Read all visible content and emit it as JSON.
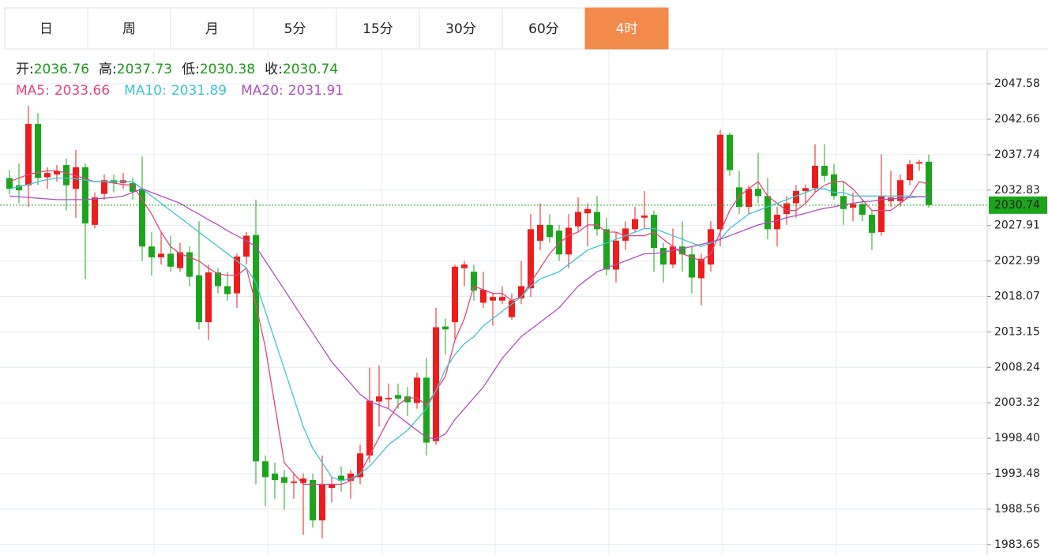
{
  "tabs": {
    "items": [
      "日",
      "周",
      "月",
      "5分",
      "15分",
      "30分",
      "60分",
      "4时"
    ],
    "active": 7,
    "active_color": "#f28a4b"
  },
  "chart_data": {
    "type": "candlestick",
    "labels": {
      "open": "开:",
      "high": "高:",
      "low": "低:",
      "close": "收:"
    },
    "up_color": "#ee1c1c",
    "down_color": "#1ca51c",
    "grid": true,
    "ylim": [
      1982.2,
      2052.3
    ],
    "yticks": [
      2047.58,
      2042.66,
      2037.74,
      2032.83,
      2027.91,
      2022.99,
      2018.07,
      2013.15,
      2008.24,
      2003.32,
      {
        "value": 1998.4,
        "label": "1998.40"
      },
      1993.48,
      1988.56,
      1983.65
    ],
    "open": [
      2034.5,
      2033.5,
      2033.5,
      2042.0,
      2034.6,
      2035.0,
      2036.3,
      2033.0,
      2036.0,
      2028.0,
      2032.3,
      2034.2,
      2033.8,
      2033.8,
      2033.0,
      2025.0,
      2023.5,
      2024.0,
      2022.0,
      2024.2,
      2021.0,
      2014.5,
      2021.4,
      2019.5,
      2018.5,
      2023.6,
      2026.6,
      1995.2,
      1993.5,
      1993.0,
      1992.2,
      1992.2,
      1992.6,
      1987.0,
      1991.5,
      1993.2,
      1992.5,
      1993.0,
      1996.0,
      2003.5,
      2003.8,
      2004.4,
      2004.2,
      2003.3,
      2006.8,
      1998.0,
      2013.9,
      2014.5,
      2022.0,
      2021.5,
      2017.2,
      2017.5,
      2017.5,
      2015.2,
      2017.8,
      2019.2,
      2025.8,
      2028.0,
      2027.2,
      2023.9,
      2027.8,
      2029.6,
      2029.8,
      2027.4,
      2021.8,
      2025.8,
      2027.4,
      2029.0,
      2029.4,
      2024.8,
      2022.5,
      2025.0,
      2023.9,
      2020.6,
      2022.5,
      2027.4,
      2040.5,
      2033.2,
      2030.5,
      2033.0,
      2032.0,
      2027.4,
      2029.5,
      2031.0,
      2032.7,
      2033.1,
      2036.2,
      2035.0,
      2032.0,
      2030.4,
      2030.9,
      2029.4,
      2027.0,
      2031.3,
      2031.3,
      2034.2,
      2036.5,
      2036.76
    ],
    "high": [
      2035.6,
      2036.5,
      2044.5,
      2043.5,
      2036.0,
      2036.3,
      2037.2,
      2038.4,
      2036.5,
      2032.5,
      2035.0,
      2035.0,
      2035.2,
      2034.5,
      2037.5,
      2027.0,
      2027.0,
      2026.5,
      2025.5,
      2025.0,
      2028.5,
      2022.5,
      2022.0,
      2021.5,
      2024.0,
      2027.0,
      2031.5,
      1996.0,
      1995.0,
      1994.0,
      1993.5,
      1993.5,
      1993.5,
      1996.0,
      1993.0,
      1994.5,
      1994.0,
      1997.5,
      2008.2,
      2008.5,
      2006.0,
      2006.0,
      2005.5,
      2007.5,
      2009.5,
      2016.5,
      2015.0,
      2022.5,
      2023.0,
      2022.5,
      2021.5,
      2018.5,
      2019.5,
      2018.5,
      2023.0,
      2029.5,
      2031.0,
      2029.5,
      2028.0,
      2029.5,
      2031.8,
      2031.0,
      2032.0,
      2029.0,
      2027.0,
      2028.5,
      2030.5,
      2032.7,
      2030.0,
      2025.5,
      2027.5,
      2028.5,
      2025.0,
      2024.0,
      2028.5,
      2041.2,
      2040.8,
      2035.5,
      2033.5,
      2038.0,
      2034.5,
      2030.5,
      2032.0,
      2033.5,
      2033.6,
      2039.2,
      2039.2,
      2036.5,
      2034.0,
      2032.5,
      2031.5,
      2030.0,
      2037.8,
      2035.5,
      2035.0,
      2037.0,
      2037.0,
      2037.73
    ],
    "low": [
      2032.3,
      2031.0,
      2030.5,
      2033.5,
      2033.0,
      2034.0,
      2030.0,
      2029.0,
      2020.5,
      2027.5,
      2031.5,
      2032.5,
      2033.0,
      2031.5,
      2023.0,
      2021.0,
      2022.5,
      2021.5,
      2021.5,
      2019.5,
      2013.5,
      2012.0,
      2018.5,
      2017.5,
      2016.5,
      2022.5,
      1992.0,
      1989.0,
      1990.0,
      1988.5,
      1990.0,
      1985.0,
      1986.0,
      1984.5,
      1989.5,
      1991.0,
      1990.0,
      1992.0,
      1995.0,
      2000.0,
      2002.5,
      2002.5,
      2001.5,
      2002.5,
      1996.0,
      1997.5,
      2010.0,
      2012.0,
      2019.5,
      2017.5,
      2016.5,
      2014.0,
      2017.0,
      2014.8,
      2017.0,
      2018.0,
      2024.5,
      2025.5,
      2023.0,
      2022.0,
      2027.0,
      2025.0,
      2026.5,
      2021.0,
      2020.0,
      2024.5,
      2027.0,
      2027.5,
      2021.5,
      2020.0,
      2022.0,
      2021.5,
      2018.5,
      2016.8,
      2021.5,
      2025.0,
      2034.8,
      2029.5,
      2029.5,
      2031.0,
      2026.0,
      2025.0,
      2028.0,
      2029.0,
      2031.0,
      2032.5,
      2034.0,
      2031.5,
      2028.0,
      2028.5,
      2028.5,
      2024.5,
      2026.5,
      2030.5,
      2030.5,
      2033.5,
      2035.5,
      2030.38
    ],
    "close": [
      2033.0,
      2032.8,
      2042.0,
      2034.5,
      2035.2,
      2035.5,
      2033.5,
      2036.0,
      2028.2,
      2031.8,
      2034.2,
      2033.8,
      2034.2,
      2032.6,
      2025.0,
      2023.5,
      2024.0,
      2022.2,
      2024.2,
      2020.8,
      2014.5,
      2021.4,
      2019.5,
      2018.4,
      2023.6,
      2026.5,
      1995.2,
      1993.0,
      1992.6,
      1992.2,
      1992.4,
      1992.8,
      1987.0,
      1992.0,
      1992.0,
      1992.5,
      1993.5,
      1996.3,
      2003.6,
      2004.2,
      2004.0,
      2003.9,
      2003.4,
      2006.8,
      1997.8,
      2013.8,
      2013.5,
      2022.2,
      2022.5,
      2018.9,
      2019.0,
      2018.0,
      2018.0,
      2017.5,
      2019.5,
      2027.4,
      2028.0,
      2026.3,
      2023.9,
      2027.6,
      2029.8,
      2030.2,
      2027.4,
      2021.8,
      2025.8,
      2027.5,
      2028.8,
      2029.3,
      2024.8,
      2022.5,
      2025.0,
      2023.9,
      2020.7,
      2023.3,
      2027.4,
      2040.5,
      2035.6,
      2030.5,
      2033.0,
      2032.0,
      2027.4,
      2029.4,
      2031.0,
      2032.7,
      2033.1,
      2036.2,
      2034.8,
      2032.0,
      2030.2,
      2030.9,
      2029.4,
      2026.9,
      2032.0,
      2031.8,
      2034.2,
      2036.4,
      2036.7,
      2030.74
    ],
    "series": [
      {
        "name": "MA5:",
        "color": "#e8457a",
        "values": [
          2034.0,
          2034.5,
          2035.0,
          2035.3,
          2035.5,
          2035.5,
          2035.2,
          2034.8,
          2034.4,
          2034.0,
          2034.0,
          2033.8,
          2033.6,
          2033.5,
          2031.5,
          2029.5,
          2027.0,
          2025.0,
          2024.0,
          2023.5,
          2023.0,
          2022.0,
          2021.2,
          2021.0,
          2021.0,
          2022.0,
          2017.0,
          2011.0,
          2003.0,
          1995.0,
          1993.5,
          1992.0,
          1992.0,
          1992.0,
          1992.0,
          1992.0,
          1992.5,
          1993.5,
          1996.0,
          1998.5,
          2001.0,
          2003.0,
          2004.0,
          2004.0,
          2003.0,
          2005.0,
          2007.0,
          2012.0,
          2015.0,
          2019.5,
          2019.0,
          2018.5,
          2018.5,
          2017.5,
          2018.0,
          2020.0,
          2022.0,
          2024.0,
          2025.5,
          2026.5,
          2027.0,
          2028.0,
          2028.0,
          2027.0,
          2027.0,
          2026.5,
          2026.5,
          2026.5,
          2027.0,
          2026.0,
          2025.0,
          2024.0,
          2023.5,
          2023.0,
          2024.0,
          2027.0,
          2030.0,
          2032.0,
          2033.0,
          2034.0,
          2032.0,
          2031.0,
          2030.0,
          2030.0,
          2031.0,
          2032.5,
          2033.5,
          2034.0,
          2034.0,
          2033.0,
          2031.5,
          2030.0,
          2030.0,
          2030.0,
          2031.0,
          2032.0,
          2034.0,
          2033.66
        ]
      },
      {
        "name": "MA10:",
        "color": "#3fc4d2",
        "values": [
          2033.0,
          2033.3,
          2033.6,
          2034.0,
          2034.3,
          2034.5,
          2034.5,
          2034.4,
          2034.2,
          2034.0,
          2034.0,
          2034.0,
          2034.0,
          2034.0,
          2033.0,
          2032.0,
          2031.0,
          2030.0,
          2029.0,
          2028.0,
          2027.0,
          2026.0,
          2025.0,
          2024.0,
          2023.0,
          2022.0,
          2020.0,
          2016.0,
          2012.0,
          2008.0,
          2004.0,
          2000.0,
          1997.0,
          1995.0,
          1993.0,
          1992.5,
          1992.8,
          1993.5,
          1994.5,
          1996.0,
          1997.5,
          1998.5,
          1999.5,
          2001.0,
          2002.5,
          2005.0,
          2008.0,
          2010.0,
          2011.5,
          2012.5,
          2014.0,
          2015.0,
          2016.0,
          2017.0,
          2018.0,
          2019.5,
          2020.5,
          2021.0,
          2021.5,
          2022.5,
          2023.5,
          2024.5,
          2025.0,
          2025.5,
          2026.0,
          2026.5,
          2027.0,
          2027.5,
          2027.5,
          2027.0,
          2026.5,
          2026.0,
          2025.5,
          2025.0,
          2025.5,
          2026.0,
          2027.5,
          2028.5,
          2029.5,
          2030.0,
          2030.5,
          2031.0,
          2031.5,
          2032.0,
          2032.5,
          2033.0,
          2033.0,
          2032.5,
          2032.5,
          2032.0,
          2032.0,
          2032.0,
          2032.0,
          2032.0,
          2032.0,
          2032.0,
          2031.9,
          2031.89
        ]
      },
      {
        "name": "MA20:",
        "color": "#b04fc0",
        "values": [
          2032.0,
          2031.9,
          2031.8,
          2031.7,
          2031.6,
          2031.5,
          2031.5,
          2031.5,
          2031.5,
          2031.6,
          2031.7,
          2031.8,
          2032.0,
          2032.5,
          2033.0,
          2032.5,
          2032.0,
          2031.5,
          2031.0,
          2030.2,
          2029.5,
          2028.7,
          2028.0,
          2027.2,
          2026.5,
          2025.8,
          2025.0,
          2023.0,
          2021.0,
          2019.0,
          2017.0,
          2015.0,
          2013.0,
          2011.0,
          2009.0,
          2007.5,
          2006.0,
          2004.5,
          2003.5,
          2003.0,
          2002.5,
          2001.5,
          2000.5,
          1999.5,
          1998.5,
          1998.3,
          1999.0,
          2001.0,
          2002.5,
          2004.0,
          2005.5,
          2007.5,
          2009.5,
          2011.0,
          2012.5,
          2013.5,
          2014.5,
          2015.5,
          2016.5,
          2018.0,
          2019.5,
          2020.5,
          2021.5,
          2022.0,
          2022.5,
          2023.0,
          2023.5,
          2024.0,
          2024.0,
          2024.2,
          2024.5,
          2024.7,
          2025.0,
          2025.3,
          2025.6,
          2026.0,
          2026.5,
          2027.0,
          2027.5,
          2028.0,
          2028.3,
          2028.6,
          2029.0,
          2029.3,
          2029.6,
          2030.0,
          2030.3,
          2030.5,
          2030.8,
          2031.0,
          2031.2,
          2031.3,
          2031.5,
          2031.6,
          2031.7,
          2031.8,
          2031.9,
          2031.91
        ]
      }
    ]
  }
}
